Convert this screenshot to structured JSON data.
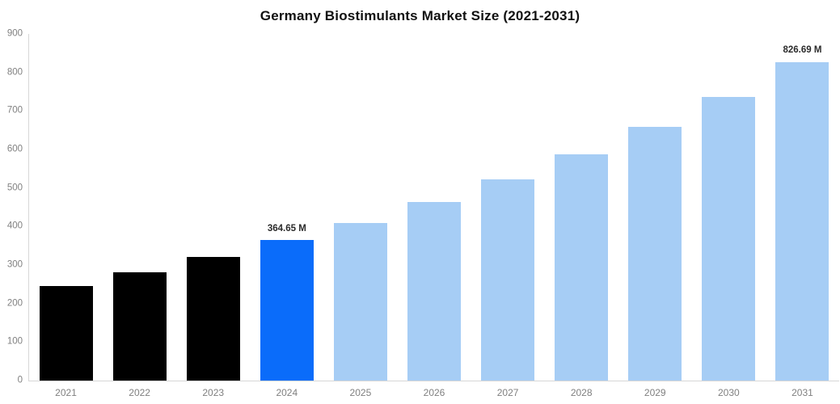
{
  "chart_data": {
    "type": "bar",
    "title": "Germany Biostimulants Market Size (2021-2031)",
    "categories": [
      "2021",
      "2022",
      "2023",
      "2024",
      "2025",
      "2026",
      "2027",
      "2028",
      "2029",
      "2030",
      "2031"
    ],
    "values": [
      245,
      282,
      321,
      364.65,
      410,
      464,
      523,
      588,
      658,
      736,
      826.69
    ],
    "bar_roles": [
      "historical",
      "historical",
      "historical",
      "highlight",
      "forecast",
      "forecast",
      "forecast",
      "forecast",
      "forecast",
      "forecast",
      "forecast"
    ],
    "data_labels": [
      null,
      null,
      null,
      "364.65 M",
      null,
      null,
      null,
      null,
      null,
      null,
      "826.69 M"
    ],
    "ylim": [
      0,
      900
    ],
    "yticks": [
      0,
      100,
      200,
      300,
      400,
      500,
      600,
      700,
      800,
      900
    ],
    "grid": false,
    "legend_position": "none",
    "colors": {
      "historical": "#000000",
      "highlight": "#0a6cfa",
      "forecast": "#a6cdf5",
      "axis_line": "#d7d7d7",
      "tick_label": "#808080",
      "data_label": "#2b2b2b",
      "title": "#111111",
      "background": "#ffffff"
    }
  }
}
